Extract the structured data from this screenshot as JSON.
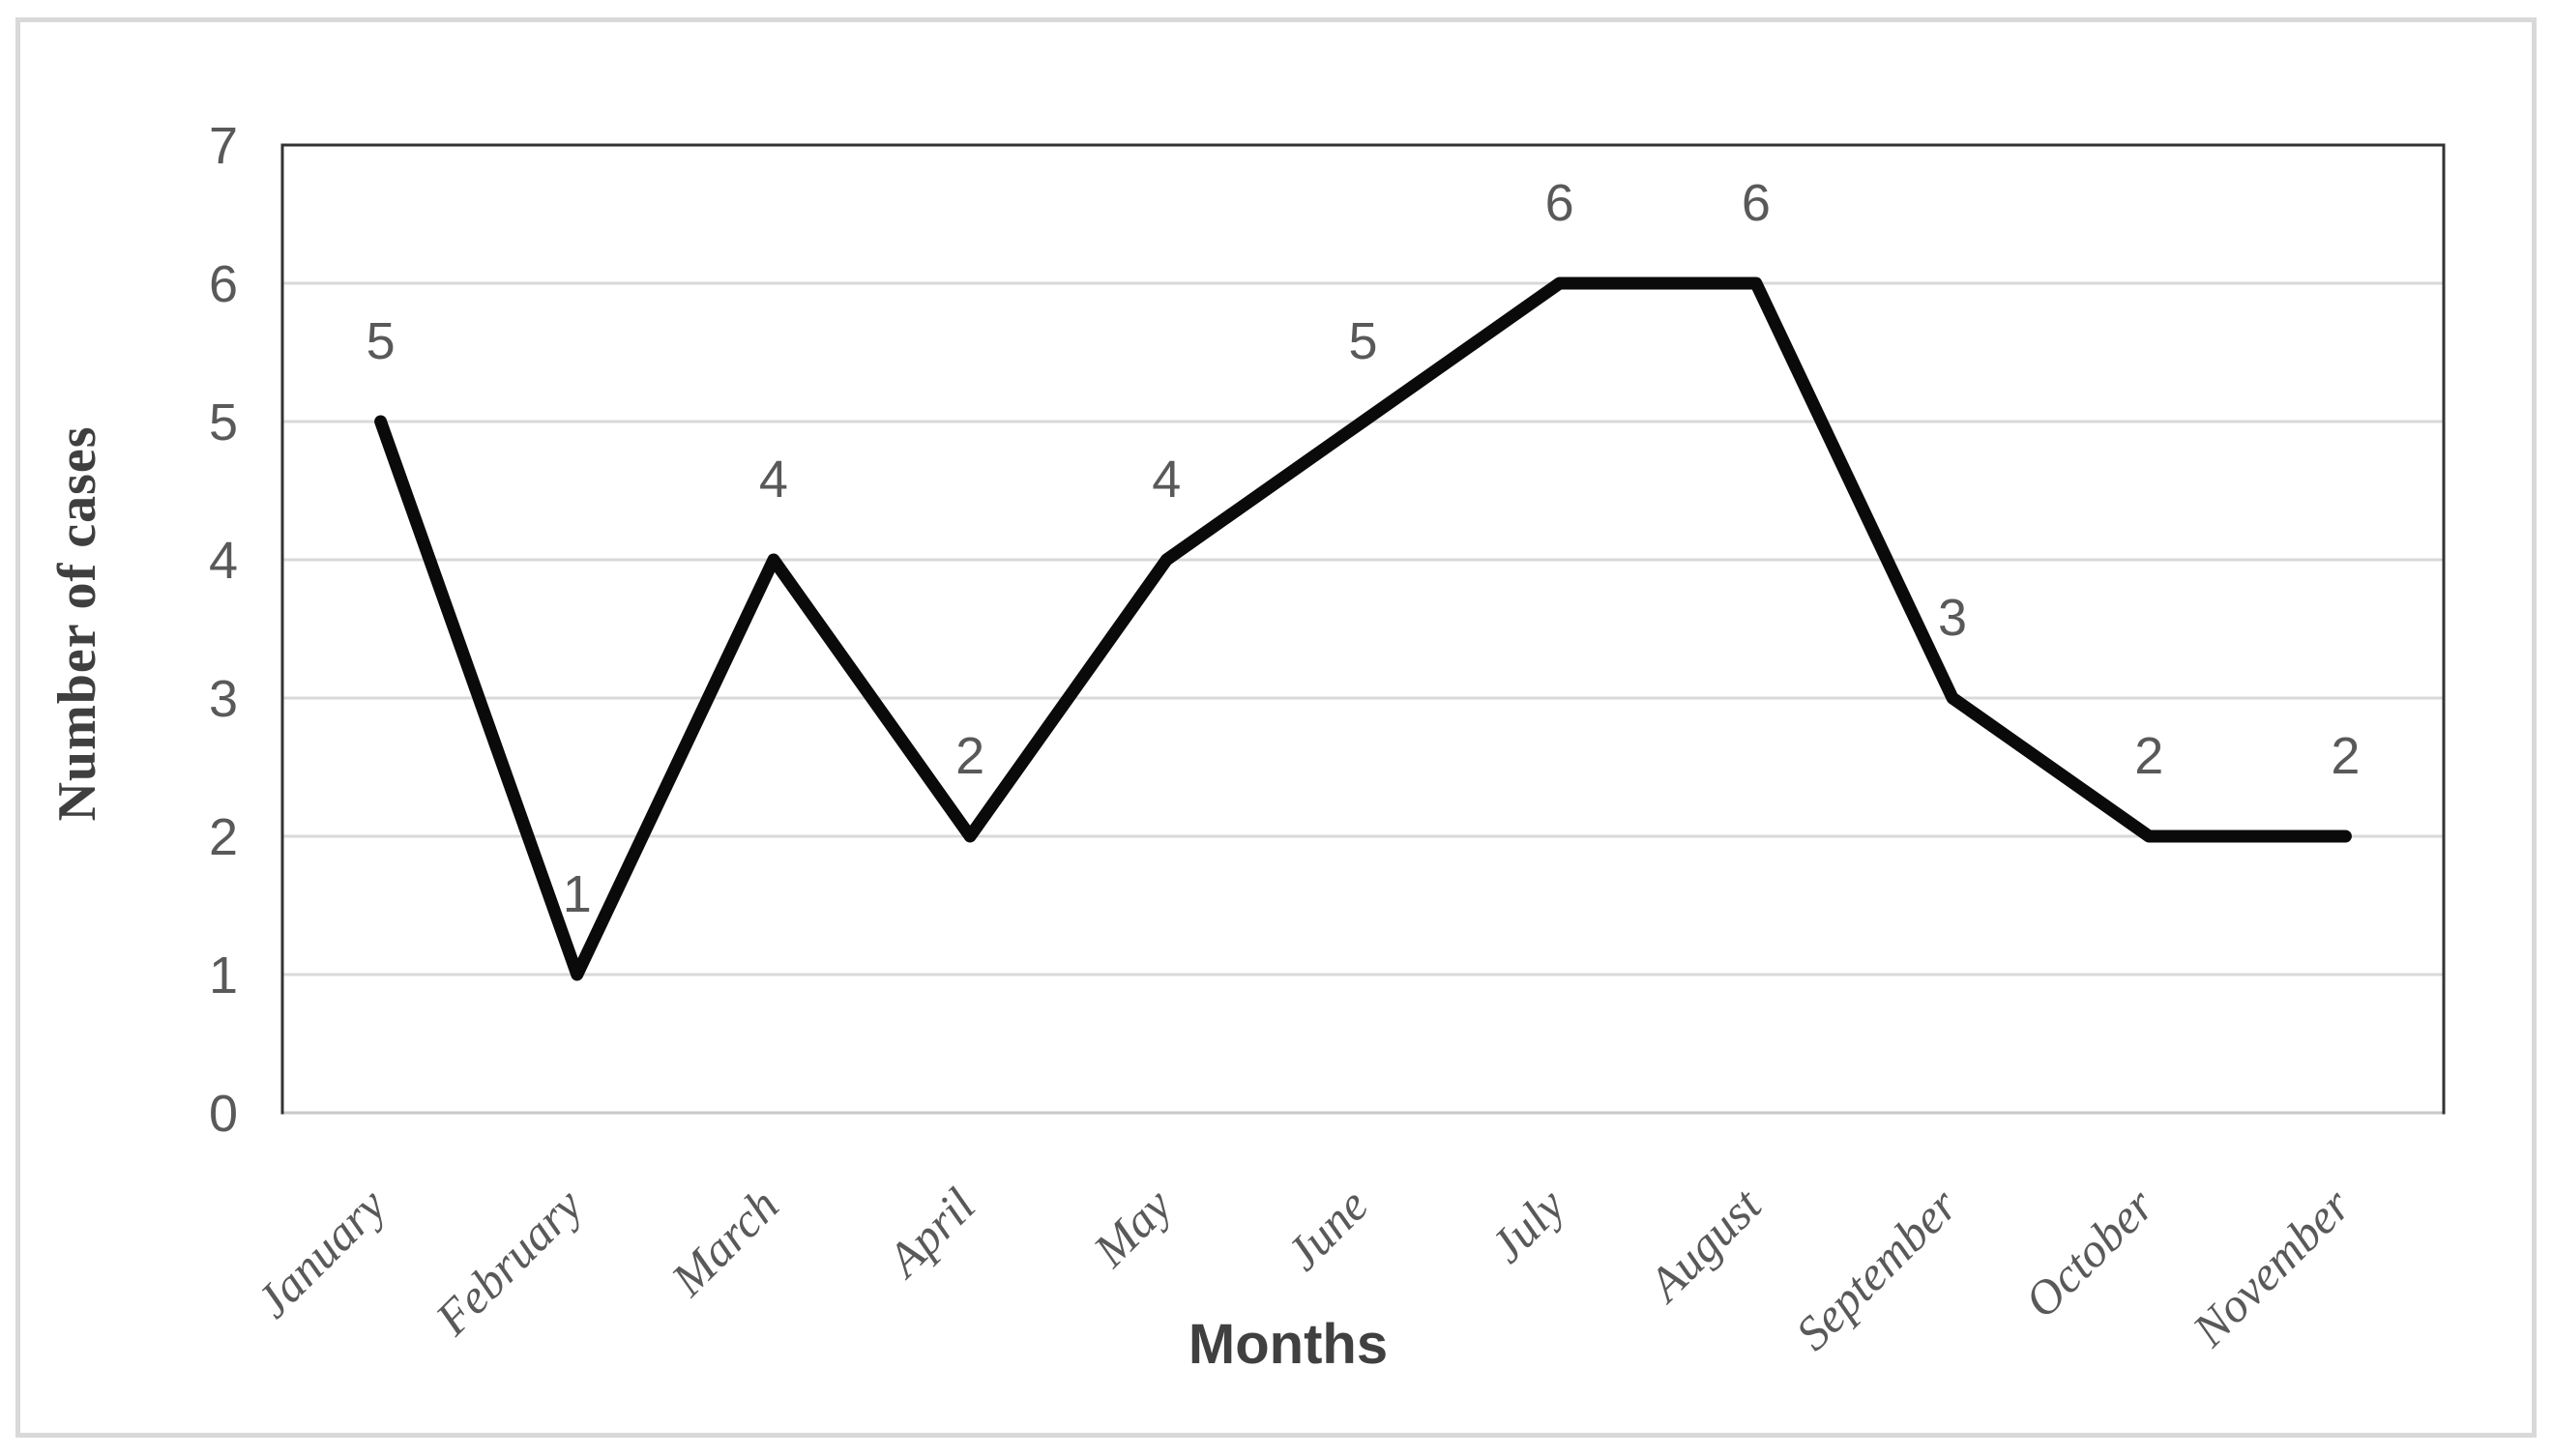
{
  "chart_data": {
    "type": "line",
    "title": "",
    "categories": [
      "January",
      "February",
      "March",
      "April",
      "May",
      "June",
      "July",
      "August",
      "September",
      "October",
      "November"
    ],
    "values": [
      5,
      1,
      4,
      2,
      4,
      5,
      6,
      6,
      3,
      2,
      2
    ],
    "data_labels": [
      "5",
      "1",
      "4",
      "2",
      "4",
      "5",
      "6",
      "6",
      "3",
      "2",
      "2"
    ],
    "xlabel": "Months",
    "ylabel": "Number of cases",
    "ylim": [
      0,
      7
    ],
    "yticks": [
      0,
      1,
      2,
      3,
      4,
      5,
      6,
      7
    ],
    "grid": "horizontal",
    "legend": "none",
    "x_tick_rotation_degrees": 45,
    "colors": {
      "series_line": "#0a0a0a",
      "gridline": "#d9d9d9",
      "axis_dark": "#333333",
      "axis_light": "#c9c9c9",
      "tick_text": "#595959",
      "data_label_text": "#595959",
      "title_text": "#404040",
      "figure_border": "#d9d9d9",
      "background": "#ffffff"
    }
  }
}
